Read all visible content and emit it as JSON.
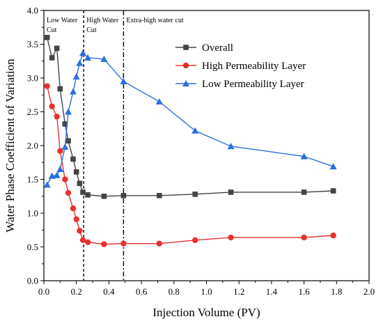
{
  "chart_data": {
    "type": "line",
    "xlabel": "Injection Volume (PV)",
    "ylabel": "Water Phase Coefficient of Variation",
    "xlim": [
      0.0,
      2.0
    ],
    "ylim": [
      0.0,
      4.0
    ],
    "x_ticks": [
      "0.0",
      "0.2",
      "0.4",
      "0.6",
      "0.8",
      "1.0",
      "1.2",
      "1.4",
      "1.6",
      "1.8",
      "2.0"
    ],
    "y_ticks": [
      "0.0",
      "0.5",
      "1.0",
      "1.5",
      "2.0",
      "2.5",
      "3.0",
      "3.5",
      "4.0"
    ],
    "grid": false,
    "legend_position": "top-right",
    "regions": [
      {
        "label_lines": [
          "Low Water",
          "Cut"
        ],
        "boundary_x": 0.245
      },
      {
        "label_lines": [
          "High Water",
          "Cut"
        ],
        "boundary_x": 0.49
      },
      {
        "label_lines": [
          "Extra-high water cut"
        ]
      }
    ],
    "series": [
      {
        "name": "Overall",
        "color": "#444444",
        "marker": "square",
        "x": [
          0.02,
          0.05,
          0.08,
          0.1,
          0.13,
          0.15,
          0.18,
          0.2,
          0.22,
          0.24,
          0.27,
          0.37,
          0.49,
          0.71,
          0.93,
          1.15,
          1.6,
          1.78
        ],
        "y": [
          3.6,
          3.3,
          3.44,
          2.84,
          2.32,
          2.07,
          1.8,
          1.61,
          1.44,
          1.31,
          1.27,
          1.25,
          1.26,
          1.26,
          1.28,
          1.31,
          1.31,
          1.33
        ]
      },
      {
        "name": "High Permeability Layer",
        "color": "#e8312f",
        "marker": "circle",
        "x": [
          0.02,
          0.05,
          0.08,
          0.1,
          0.13,
          0.15,
          0.18,
          0.2,
          0.22,
          0.24,
          0.27,
          0.37,
          0.49,
          0.71,
          0.93,
          1.15,
          1.6,
          1.78
        ],
        "y": [
          2.88,
          2.58,
          2.43,
          1.92,
          1.5,
          1.3,
          1.07,
          0.91,
          0.74,
          0.6,
          0.57,
          0.54,
          0.55,
          0.55,
          0.6,
          0.64,
          0.64,
          0.67
        ]
      },
      {
        "name": "Low Permeability Layer",
        "color": "#2a6fdd",
        "marker": "triangle",
        "x": [
          0.02,
          0.05,
          0.08,
          0.1,
          0.13,
          0.15,
          0.18,
          0.2,
          0.22,
          0.24,
          0.27,
          0.37,
          0.49,
          0.71,
          0.93,
          1.15,
          1.6,
          1.78
        ],
        "y": [
          1.42,
          1.55,
          1.56,
          1.65,
          1.98,
          2.5,
          2.8,
          3.02,
          3.22,
          3.37,
          3.3,
          3.28,
          2.95,
          2.65,
          2.22,
          1.99,
          1.84,
          1.69
        ]
      }
    ]
  }
}
